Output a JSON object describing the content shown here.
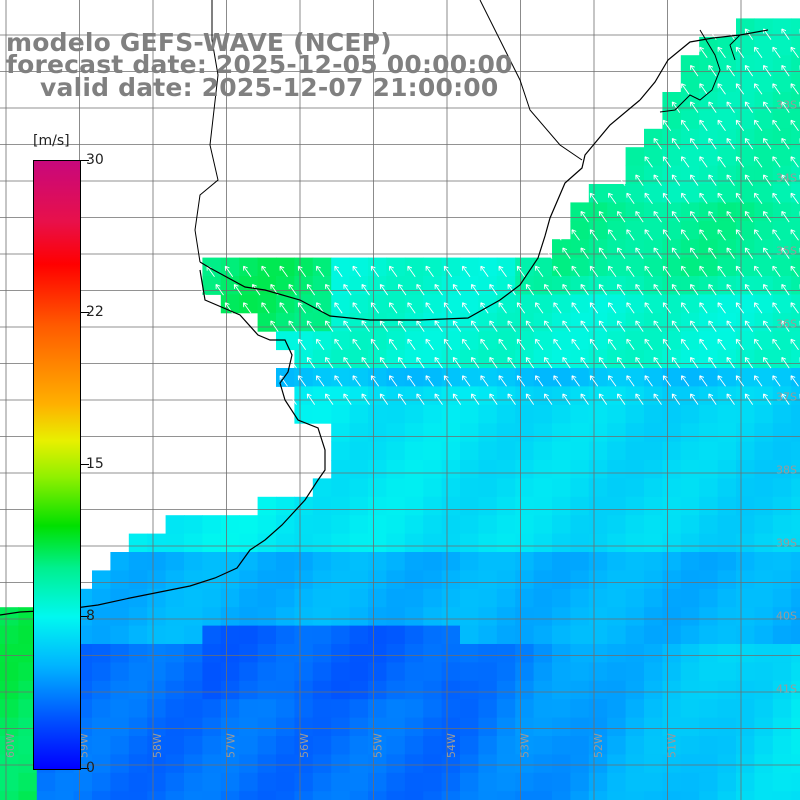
{
  "title": {
    "line1": "modelo GEFS-WAVE (NCEP)",
    "line2": "forecast date: 2025-12-05 00:00:00",
    "line3": "valid date: 2025-12-07 21:00:00"
  },
  "colorbar": {
    "unit": "[m/s]",
    "min": 0,
    "max": 30,
    "ticks": [
      "30",
      "22",
      "15",
      "8",
      "0"
    ]
  },
  "map": {
    "variable": "wind speed with direction arrows",
    "region": "Rio de la Plata estuary and adjacent South Atlantic (Uruguay / Buenos Aires coast)",
    "lat_labels": [
      "33S",
      "34S",
      "35S",
      "36S",
      "37S",
      "38S",
      "39S",
      "40S",
      "41S"
    ],
    "lon_labels": [
      "60W",
      "59W",
      "58W",
      "57W",
      "56W",
      "55W",
      "54W",
      "53W",
      "52W",
      "51W"
    ],
    "colors": {
      "land": "#ffffff",
      "grid": "#6e6e6e",
      "coast": "#000000",
      "arrow": "#ffffff",
      "label": "#9a9a9a"
    }
  }
}
